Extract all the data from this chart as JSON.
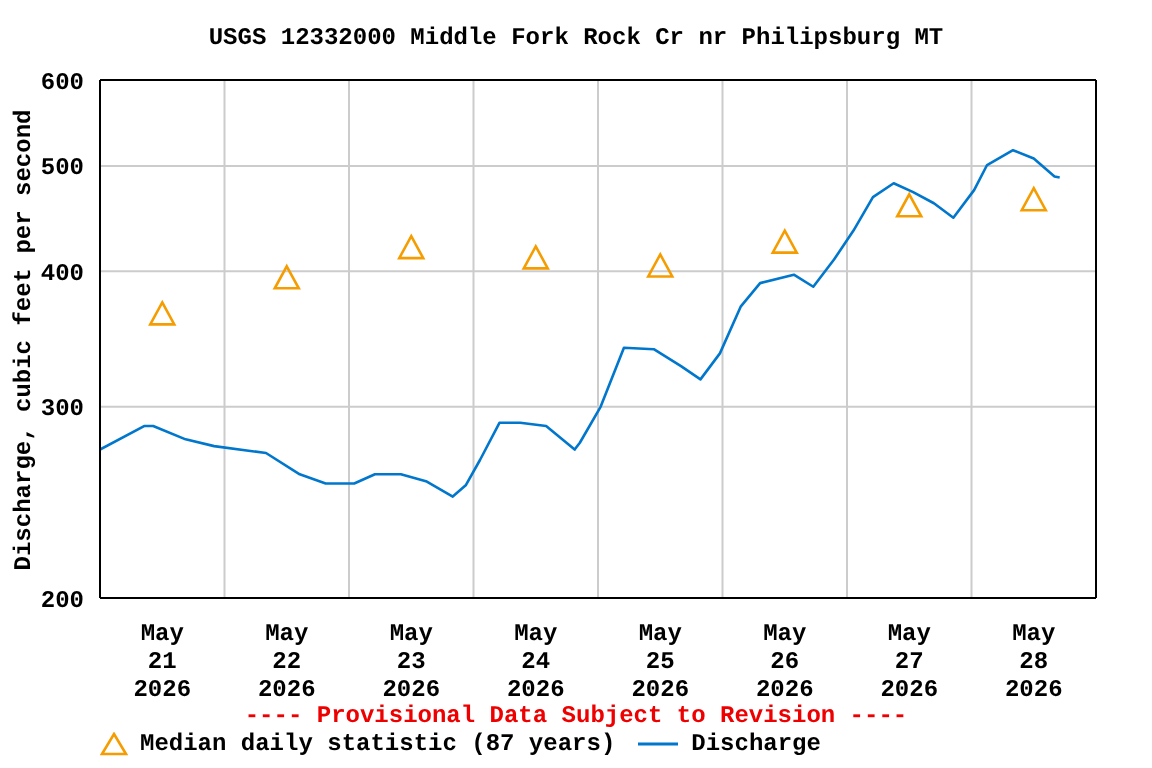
{
  "chart_data": {
    "type": "line",
    "title": "USGS 12332000 Middle Fork Rock Cr nr Philipsburg MT",
    "ylabel": "Discharge, cubic feet per second",
    "annotations": [
      "---- Provisional Data Subject to Revision ----"
    ],
    "log": "y",
    "grid": true,
    "legend": "bottom",
    "ylim": [
      200,
      600
    ],
    "yticks": [
      200,
      300,
      400,
      500,
      600
    ],
    "xlim": [
      "2026-05-21T00:00",
      "2026-05-29T00:00"
    ],
    "xticks": [
      {
        "value": "2026-05-21T00:00",
        "label": null
      },
      {
        "value": "2026-05-21T12:00",
        "label": "May\n21\n2026"
      },
      {
        "value": "2026-05-22T00:00",
        "label": null
      },
      {
        "value": "2026-05-22T12:00",
        "label": "May\n22\n2026"
      },
      {
        "value": "2026-05-23T00:00",
        "label": null
      },
      {
        "value": "2026-05-23T12:00",
        "label": "May\n23\n2026"
      },
      {
        "value": "2026-05-24T00:00",
        "label": null
      },
      {
        "value": "2026-05-24T12:00",
        "label": "May\n24\n2026"
      },
      {
        "value": "2026-05-25T00:00",
        "label": null
      },
      {
        "value": "2026-05-25T12:00",
        "label": "May\n25\n2026"
      },
      {
        "value": "2026-05-26T00:00",
        "label": null
      },
      {
        "value": "2026-05-26T12:00",
        "label": "May\n26\n2026"
      },
      {
        "value": "2026-05-27T00:00",
        "label": null
      },
      {
        "value": "2026-05-27T12:00",
        "label": "May\n27\n2026"
      },
      {
        "value": "2026-05-28T00:00",
        "label": null
      },
      {
        "value": "2026-05-28T12:00",
        "label": "May\n28\n2026"
      },
      {
        "value": "2026-05-29T00:00",
        "label": null
      }
    ],
    "series": [
      {
        "name": "Median daily statistic (87 years)",
        "type": "scatter",
        "marker": "triangle",
        "color": "#f59d00",
        "x": [
          "2026-05-21T12:00",
          "2026-05-22T12:00",
          "2026-05-23T12:00",
          "2026-05-24T12:00",
          "2026-05-25T12:00",
          "2026-05-26T12:00",
          "2026-05-27T12:00",
          "2026-05-28T12:00"
        ],
        "values": [
          365,
          394,
          420,
          411,
          404,
          425,
          459,
          465
        ]
      },
      {
        "name": "Discharge",
        "type": "line",
        "marker": "none",
        "color": "#0077cc",
        "x": [
          "2026-05-21T00:00",
          "2026-05-21T08:30",
          "2026-05-21T10:15",
          "2026-05-21T16:30",
          "2026-05-21T22:00",
          "2026-05-22T08:00",
          "2026-05-22T14:30",
          "2026-05-22T19:30",
          "2026-05-23T01:00",
          "2026-05-23T05:00",
          "2026-05-23T10:00",
          "2026-05-23T15:00",
          "2026-05-23T20:00",
          "2026-05-23T22:30",
          "2026-05-24T01:15",
          "2026-05-24T05:00",
          "2026-05-24T09:00",
          "2026-05-24T14:00",
          "2026-05-24T19:30",
          "2026-05-24T20:30",
          "2026-05-25T00:30",
          "2026-05-25T05:00",
          "2026-05-25T10:45",
          "2026-05-25T16:00",
          "2026-05-25T19:45",
          "2026-05-25T23:30",
          "2026-05-26T03:30",
          "2026-05-26T07:15",
          "2026-05-26T13:45",
          "2026-05-26T17:30",
          "2026-05-26T21:30",
          "2026-05-27T01:15",
          "2026-05-27T05:00",
          "2026-05-27T09:00",
          "2026-05-27T12:45",
          "2026-05-27T16:45",
          "2026-05-27T20:30",
          "2026-05-28T00:30",
          "2026-05-28T03:00",
          "2026-05-28T08:00",
          "2026-05-28T12:00",
          "2026-05-28T16:00",
          "2026-05-28T17:00"
        ],
        "values": [
          274,
          288,
          288,
          280,
          276,
          272,
          260,
          255,
          255,
          260,
          260,
          256,
          248,
          254,
          268,
          290,
          290,
          288,
          274,
          278,
          300,
          340,
          339,
          327,
          318,
          336,
          371,
          390,
          397,
          387,
          410,
          436,
          468,
          482,
          473,
          462,
          448,
          475,
          501,
          517,
          508,
          489,
          488
        ]
      }
    ]
  }
}
